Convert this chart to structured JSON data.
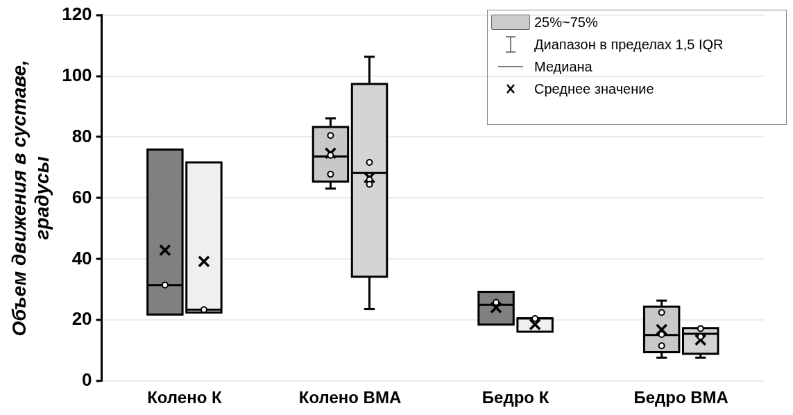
{
  "chart_data": {
    "type": "box",
    "ylabel": "Объем движения в суставе, градусы",
    "categories": [
      "Колено К",
      "Колено ВМА",
      "Бедро К",
      "Бедро ВМА"
    ],
    "ylim": [
      0,
      120
    ],
    "yticks": [
      0,
      20,
      40,
      60,
      80,
      100,
      120
    ],
    "grid": "y",
    "annotations": [
      "25%~75%",
      "Диапазон в пределах 1,5 IQR",
      "Медиана",
      "Среднее значение"
    ],
    "series": [
      {
        "colors": [
          "#808080",
          "#c8c8c8",
          "#808080",
          "#c8c8c8"
        ],
        "boxes": [
          {
            "low": 21.8,
            "q1": 21.8,
            "median": 31.5,
            "q3": 75.9,
            "high": 75.9,
            "mean": 42.9,
            "outliers": [
              31.5
            ]
          },
          {
            "low": 63.1,
            "q1": 65.4,
            "median": 73.6,
            "q3": 83.3,
            "high": 86.1,
            "mean": 74.7,
            "outliers": [
              80.5,
              74,
              67.8
            ]
          },
          {
            "low": 18.5,
            "q1": 18.5,
            "median": 25,
            "q3": 29.3,
            "high": 29.3,
            "mean": 24.1,
            "outliers": [
              25.8
            ]
          },
          {
            "low": 7.7,
            "q1": 9.5,
            "median": 15.1,
            "q3": 24.4,
            "high": 26.4,
            "mean": 16.9,
            "outliers": [
              22.5,
              15.3,
              11.6
            ]
          }
        ]
      },
      {
        "colors": [
          "#efefef",
          "#d4d4d4",
          "#efefef",
          "#d4d4d4"
        ],
        "boxes": [
          {
            "low": 22.5,
            "q1": 22.5,
            "median": 23.4,
            "q3": 71.7,
            "high": 71.7,
            "mean": 39.2,
            "outliers": [
              23.4
            ]
          },
          {
            "low": 23.6,
            "q1": 34.2,
            "median": 68.2,
            "q3": 97.4,
            "high": 106.3,
            "mean": 66.7,
            "outliers": [
              71.7,
              66,
              64.5
            ]
          },
          {
            "low": 16.2,
            "q1": 16.2,
            "median": 20.6,
            "q3": 20.6,
            "high": 20.6,
            "mean": 18.6,
            "outliers": [
              20.5
            ]
          },
          {
            "low": 7.7,
            "q1": 9,
            "median": 15.5,
            "q3": 17.4,
            "high": 17.4,
            "mean": 13.5,
            "outliers": [
              17.2,
              14.6
            ]
          }
        ]
      }
    ]
  }
}
